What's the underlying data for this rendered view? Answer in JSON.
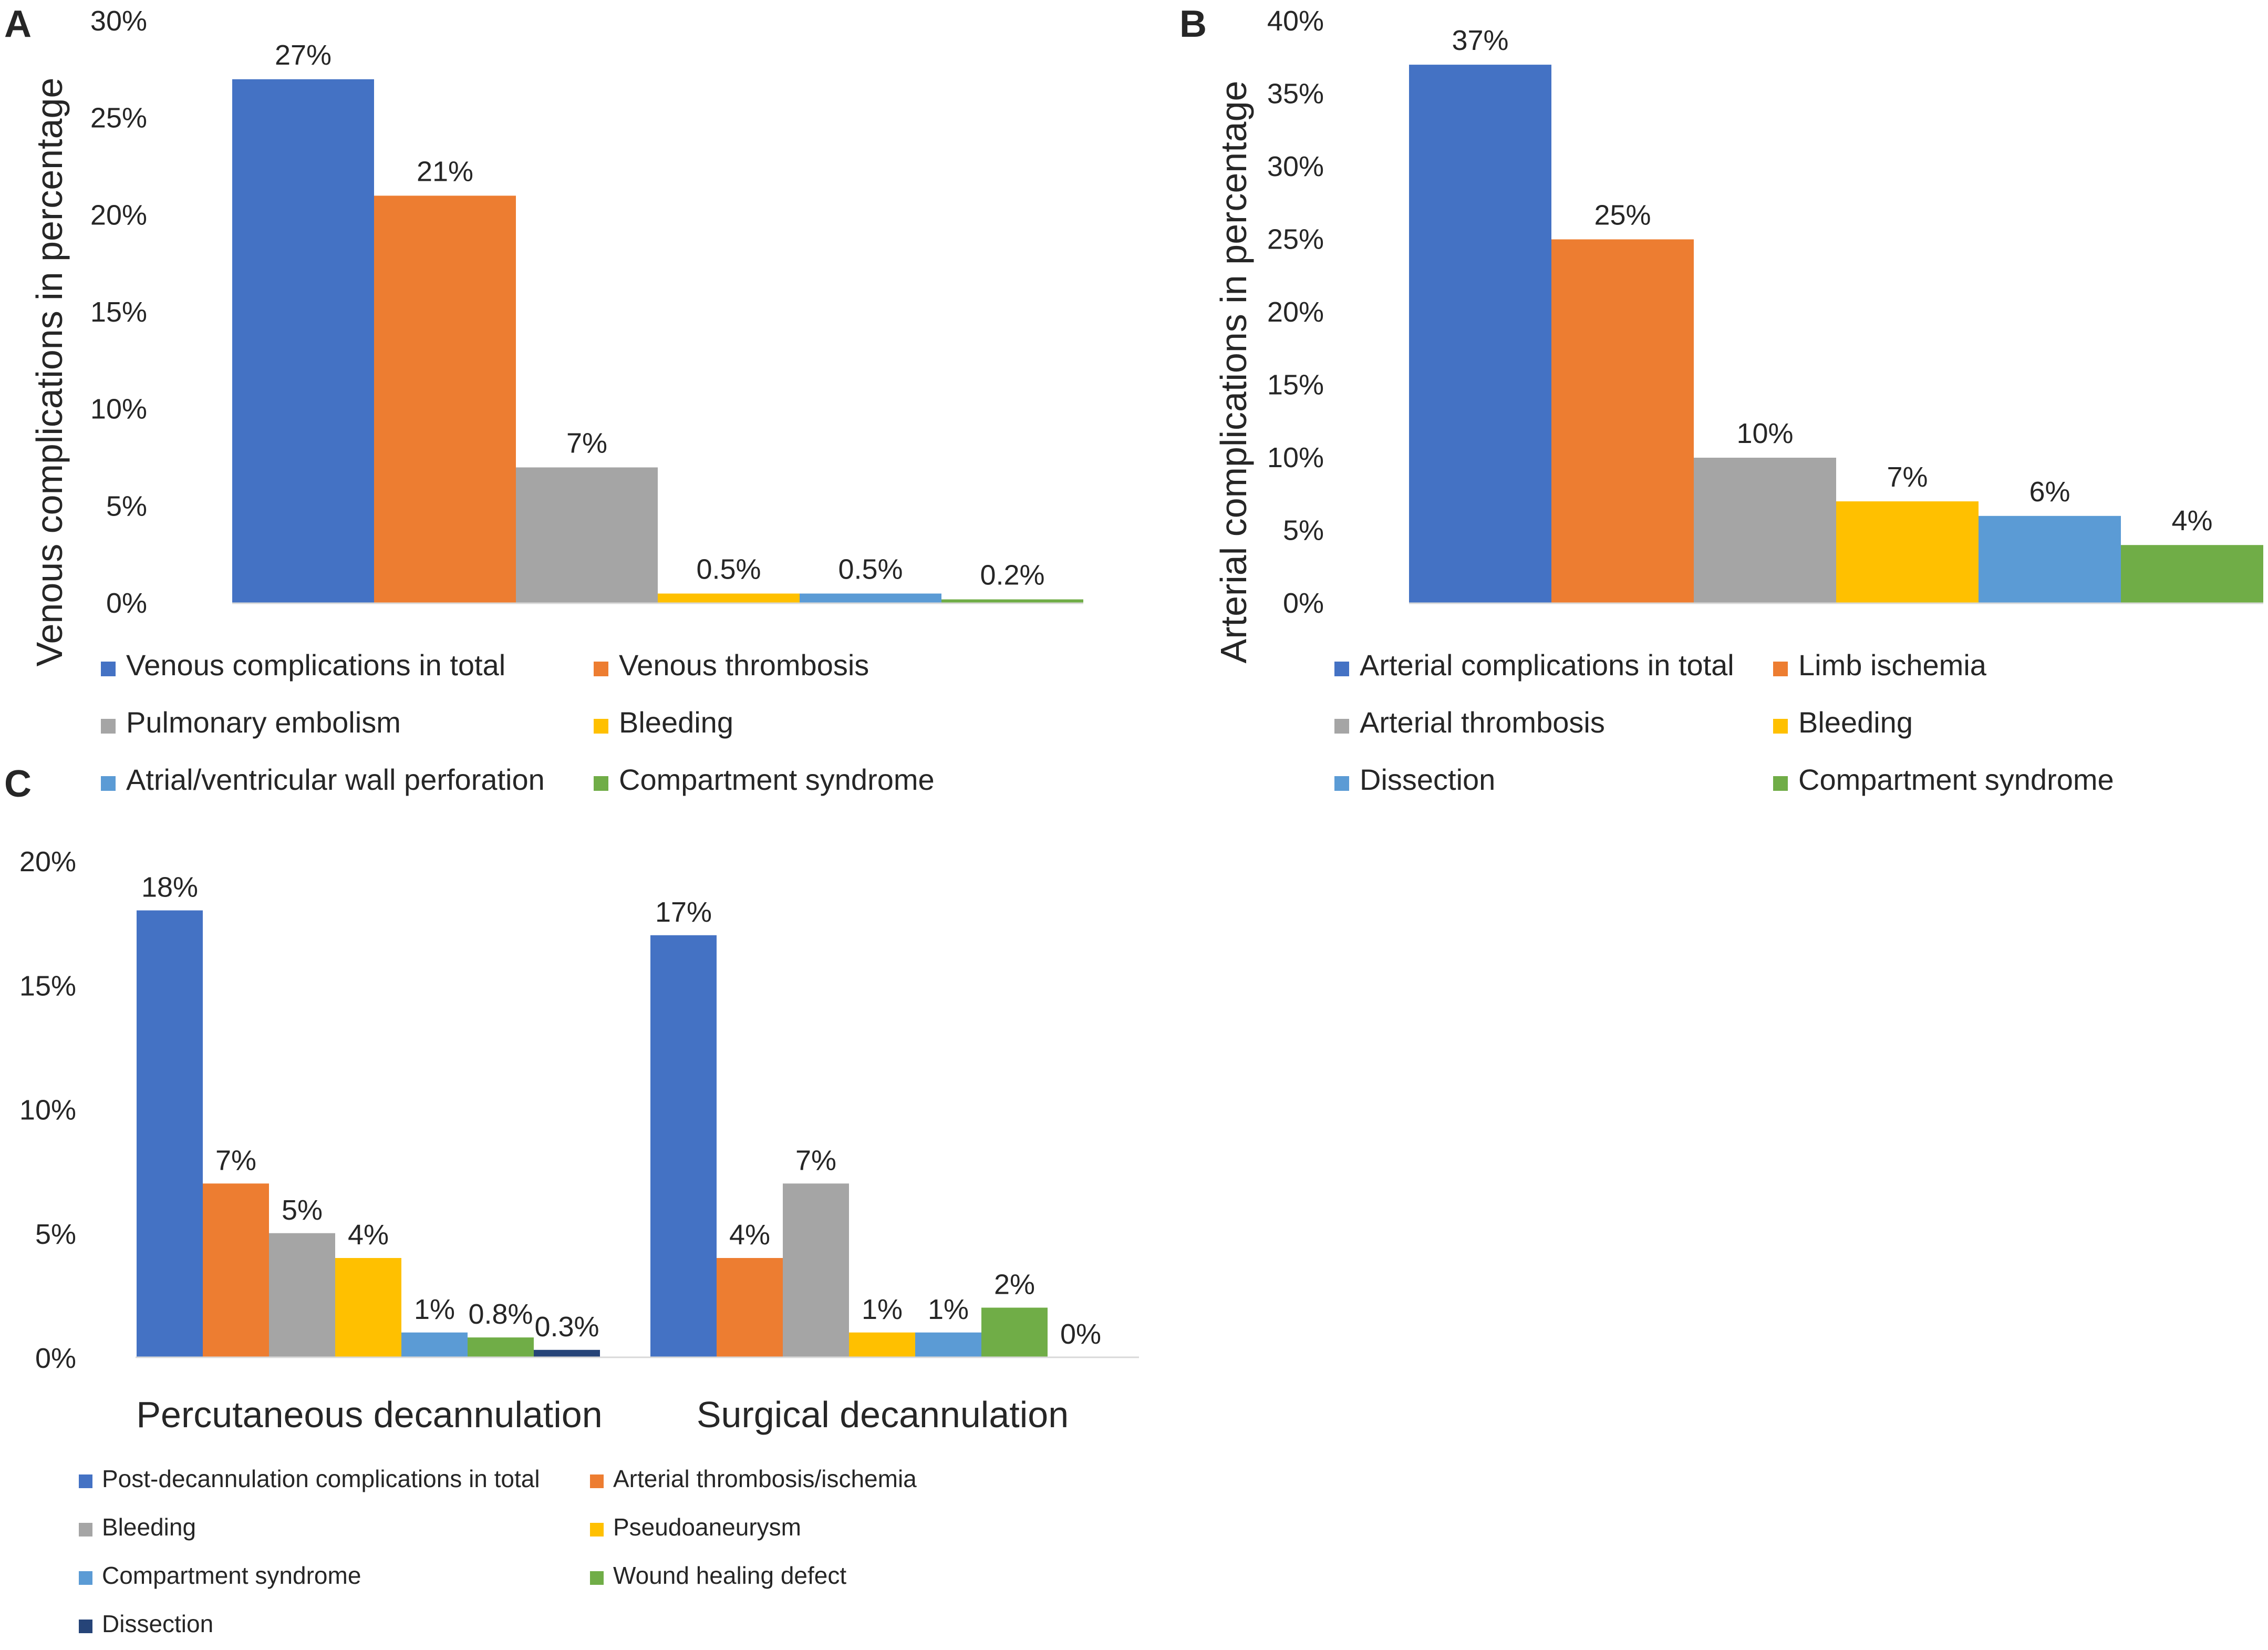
{
  "colors": {
    "blue": "#4472C4",
    "orange": "#ED7D31",
    "gray": "#A5A5A5",
    "yellow": "#FFC000",
    "lightblue": "#5B9BD5",
    "green": "#70AD47",
    "navy": "#264478"
  },
  "chart_data": [
    {
      "panel": "A",
      "type": "bar",
      "title": "",
      "xlabel": "",
      "ylabel": "Venous complications in percentage",
      "ylim": [
        0,
        30
      ],
      "yticks": [
        "0%",
        "5%",
        "10%",
        "15%",
        "20%",
        "25%",
        "30%"
      ],
      "categories": [
        "Venous complications in total",
        "Venous thrombosis",
        "Pulmonary embolism",
        "Bleeding",
        "Atrial/ventricular wall perforation",
        "Compartment syndrome"
      ],
      "values": [
        27,
        21,
        7,
        0.5,
        0.5,
        0.2
      ],
      "data_labels": [
        "27%",
        "21%",
        "7%",
        "0.5%",
        "0.5%",
        "0.2%"
      ],
      "series_colors": [
        "blue",
        "orange",
        "gray",
        "yellow",
        "lightblue",
        "green"
      ],
      "legend": [
        "Venous complications in total",
        "Venous thrombosis",
        "Pulmonary embolism",
        "Bleeding",
        "Atrial/ventricular wall perforation",
        "Compartment syndrome"
      ],
      "legend_position": "bottom"
    },
    {
      "panel": "B",
      "type": "bar",
      "title": "",
      "xlabel": "",
      "ylabel": "Arterial complications in percentage",
      "ylim": [
        0,
        40
      ],
      "yticks": [
        "0%",
        "5%",
        "10%",
        "15%",
        "20%",
        "25%",
        "30%",
        "35%",
        "40%"
      ],
      "categories": [
        "Arterial complications in total",
        "Limb ischemia",
        "Arterial thrombosis",
        "Bleeding",
        "Dissection",
        "Compartment syndrome"
      ],
      "values": [
        37,
        25,
        10,
        7,
        6,
        4
      ],
      "data_labels": [
        "37%",
        "25%",
        "10%",
        "7%",
        "6%",
        "4%"
      ],
      "series_colors": [
        "blue",
        "orange",
        "gray",
        "yellow",
        "lightblue",
        "green"
      ],
      "legend": [
        "Arterial complications in total",
        "Limb ischemia",
        "Arterial thrombosis",
        "Bleeding",
        "Dissection",
        "Compartment syndrome"
      ],
      "legend_position": "bottom"
    },
    {
      "panel": "C",
      "type": "bar",
      "title": "",
      "xlabel": "",
      "ylabel": "",
      "ylim": [
        0,
        20
      ],
      "yticks": [
        "0%",
        "5%",
        "10%",
        "15%",
        "20%"
      ],
      "categories": [
        "Percutaneous decannulation",
        "Surgical decannulation"
      ],
      "series": [
        {
          "name": "Post-decannulation complications in total",
          "color": "blue",
          "values": [
            18,
            17
          ],
          "labels": [
            "18%",
            "17%"
          ]
        },
        {
          "name": "Arterial thrombosis/ischemia",
          "color": "orange",
          "values": [
            7,
            4
          ],
          "labels": [
            "7%",
            "4%"
          ]
        },
        {
          "name": "Bleeding",
          "color": "gray",
          "values": [
            5,
            7
          ],
          "labels": [
            "5%",
            "7%"
          ]
        },
        {
          "name": "Pseudoaneurysm",
          "color": "yellow",
          "values": [
            4,
            1
          ],
          "labels": [
            "4%",
            "1%"
          ]
        },
        {
          "name": "Compartment syndrome",
          "color": "lightblue",
          "values": [
            1,
            1
          ],
          "labels": [
            "1%",
            "1%"
          ]
        },
        {
          "name": "Wound healing defect",
          "color": "green",
          "values": [
            0.8,
            2
          ],
          "labels": [
            "0.8%",
            "2%"
          ]
        },
        {
          "name": "Dissection",
          "color": "navy",
          "values": [
            0.3,
            0
          ],
          "labels": [
            "0.3%",
            "0%"
          ]
        }
      ],
      "legend_position": "bottom"
    }
  ]
}
